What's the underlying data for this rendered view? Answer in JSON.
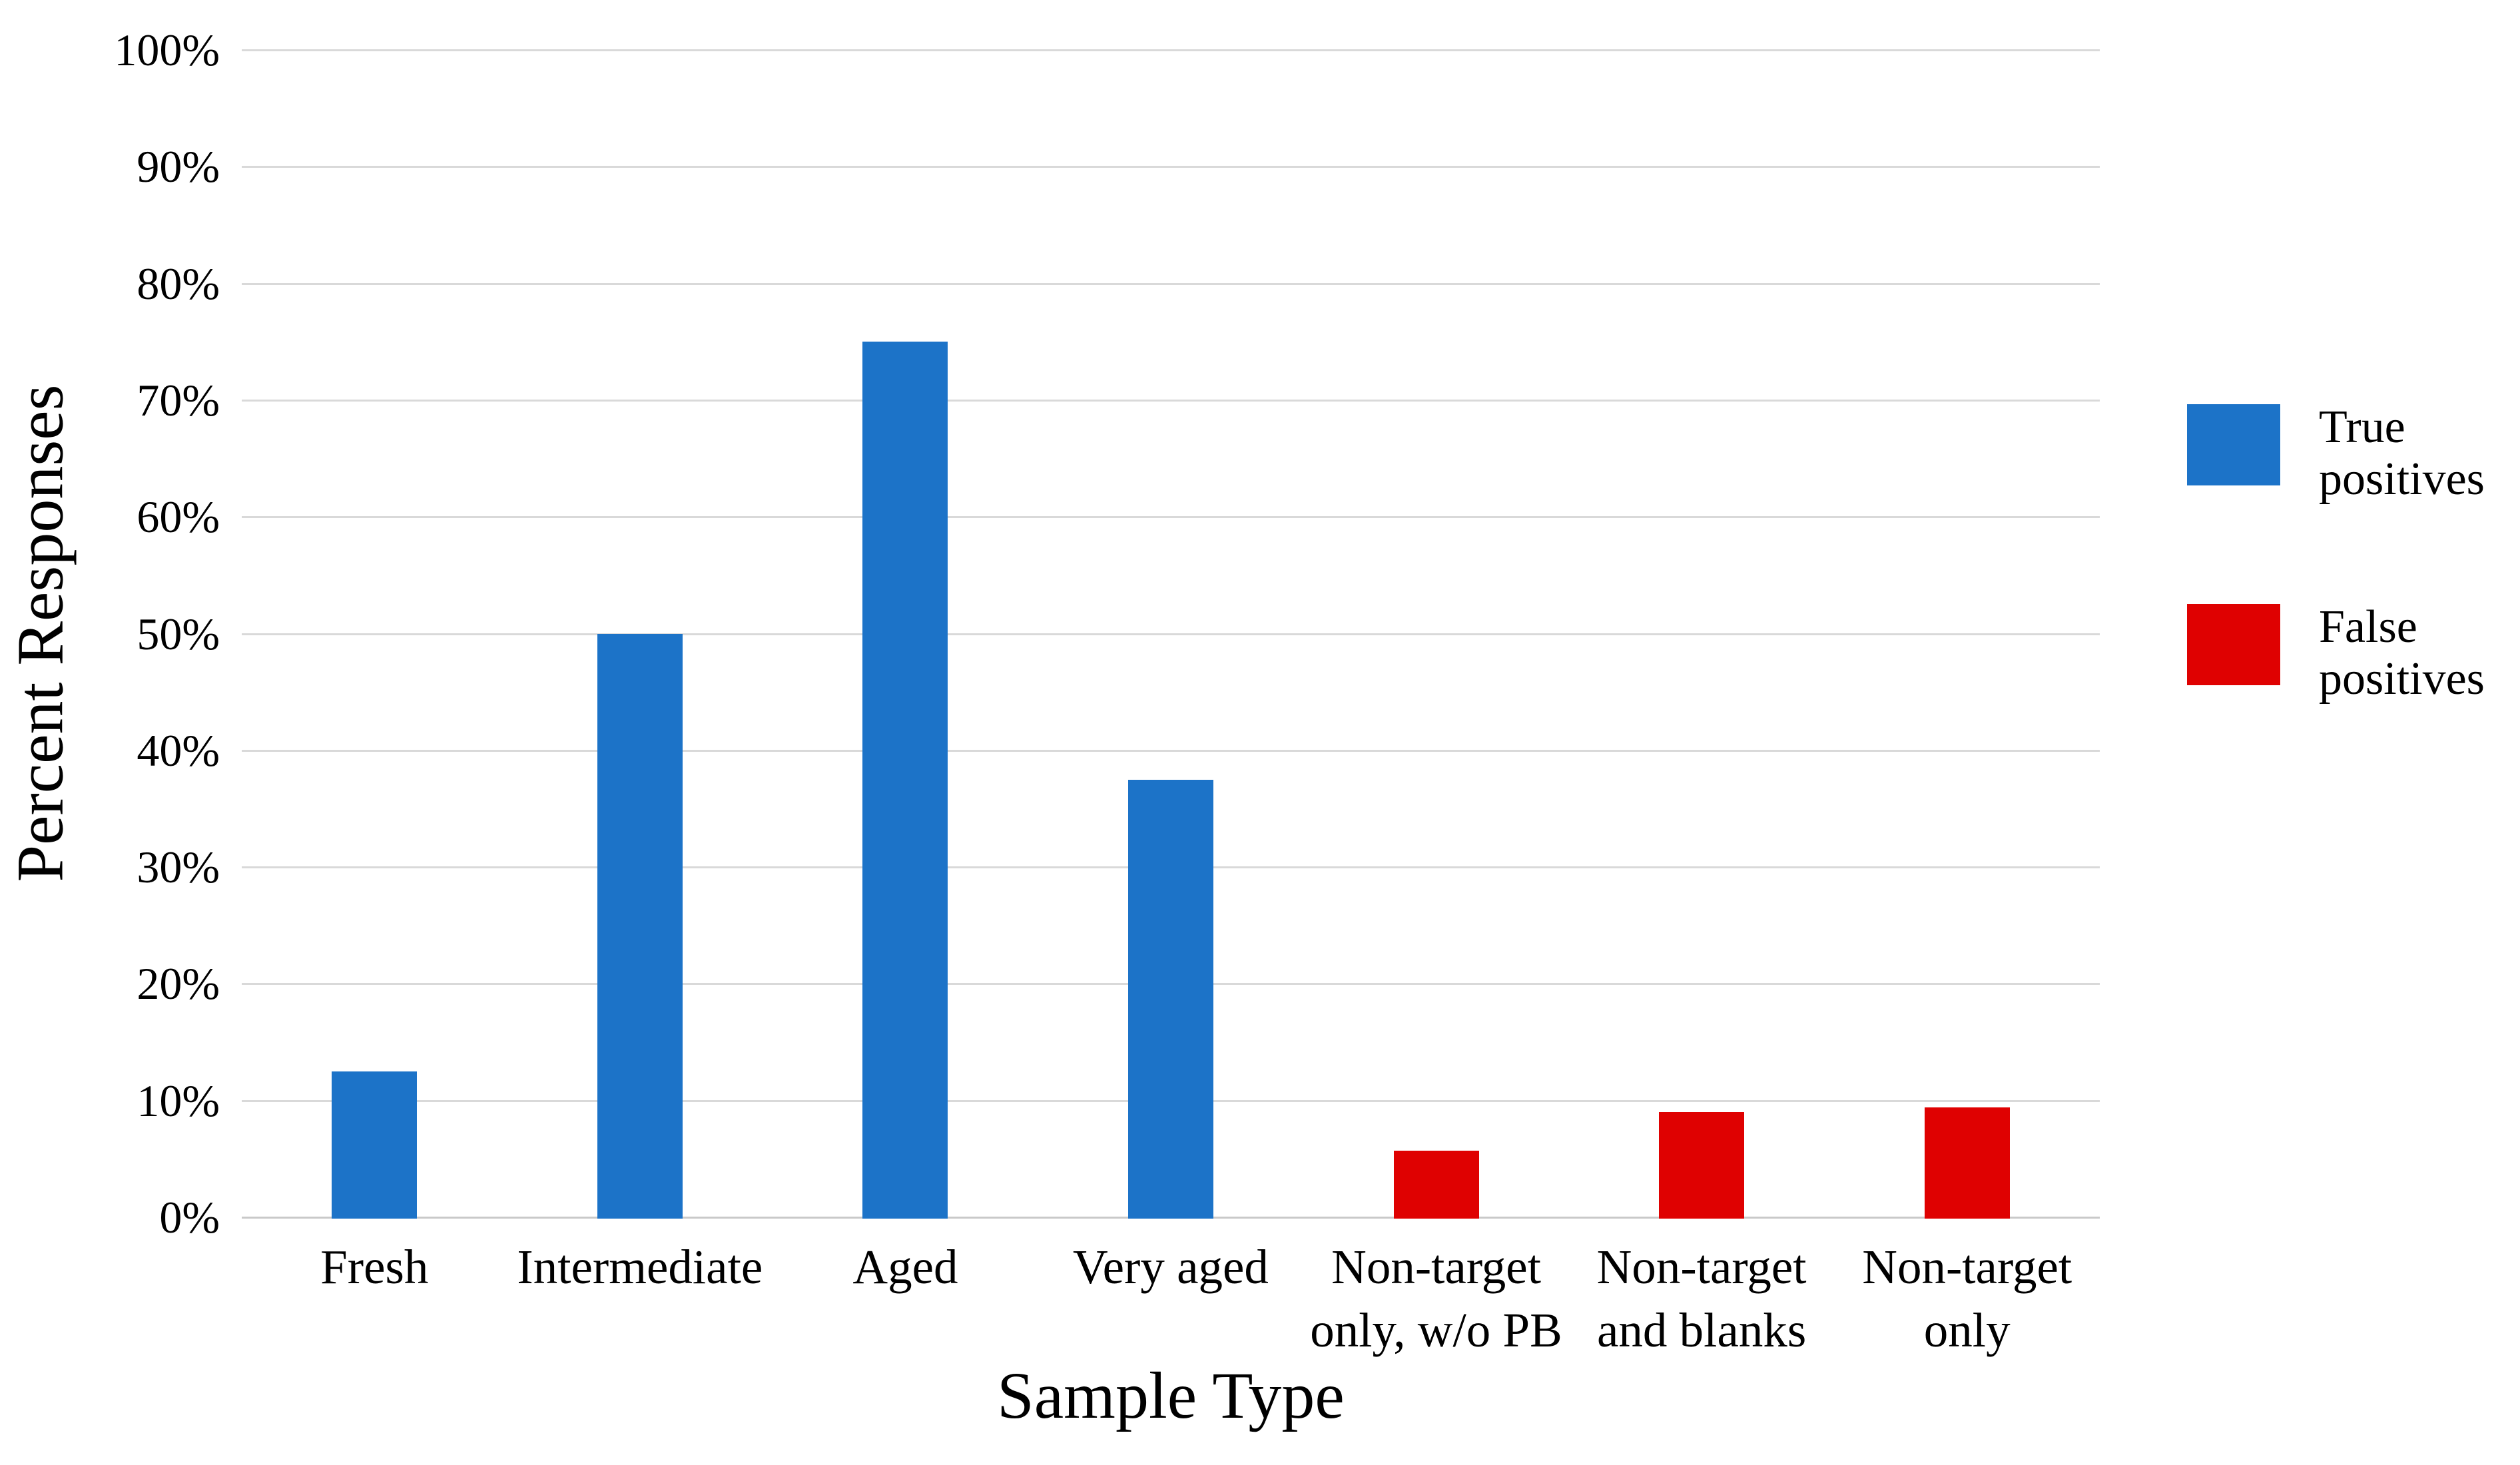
{
  "chart_data": {
    "type": "bar",
    "title": "",
    "xlabel": "Sample Type",
    "ylabel": "Percent Responses",
    "ylim": [
      0,
      100
    ],
    "ytick_step": 10,
    "y_tick_labels": [
      "0%",
      "10%",
      "20%",
      "30%",
      "40%",
      "50%",
      "60%",
      "70%",
      "80%",
      "90%",
      "100%"
    ],
    "grid": true,
    "legend_position": "right",
    "categories": [
      "Fresh",
      "Intermediate",
      "Aged",
      "Very aged",
      "Non-target only, w/o PB",
      "Non-target and blanks",
      "Non-target only"
    ],
    "category_label_lines": [
      [
        "Fresh"
      ],
      [
        "Intermediate"
      ],
      [
        "Aged"
      ],
      [
        "Very aged"
      ],
      [
        "Non-target",
        "only, w/o PB"
      ],
      [
        "Non-target",
        "and blanks"
      ],
      [
        "Non-target",
        "only"
      ]
    ],
    "series": [
      {
        "name": "True positives",
        "color": "#1C73C8",
        "values": [
          12.5,
          50,
          75,
          37.5,
          null,
          null,
          null
        ]
      },
      {
        "name": "False positives",
        "color": "#DF0101",
        "values": [
          null,
          null,
          null,
          null,
          5.7,
          9,
          9.4
        ]
      }
    ]
  },
  "legend": {
    "items": [
      {
        "label_lines": [
          "True",
          "positives"
        ],
        "color": "#1C73C8"
      },
      {
        "label_lines": [
          "False",
          "positives"
        ],
        "color": "#DF0101"
      }
    ]
  },
  "axes": {
    "x_title": "Sample Type",
    "y_title": "Percent Responses"
  },
  "colors": {
    "gridline": "#D9D9D9",
    "true_positives": "#1C73C8",
    "false_positives": "#DF0101",
    "text": "#000000"
  }
}
